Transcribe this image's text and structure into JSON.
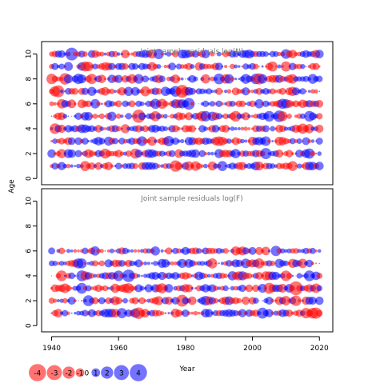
{
  "chart_data": [
    {
      "type": "scatter",
      "title": "Joint sample residuals log(N)",
      "xlabel": "Year",
      "ylabel": "Age",
      "xlim": [
        1937,
        2024
      ],
      "ylim": [
        -0.5,
        11
      ],
      "xticks": [
        "1940",
        "1960",
        "1980",
        "2000",
        "2020"
      ],
      "yticks": [
        "0",
        "2",
        "4",
        "6",
        "8",
        "10"
      ],
      "years": [
        1940,
        2020
      ],
      "ages": [
        1,
        10
      ],
      "bubble_encoding": "size = |residual|, red = negative, blue = positive"
    },
    {
      "type": "scatter",
      "title": "Joint sample residuals log(F)",
      "xlabel": "Year",
      "ylabel": "Age",
      "xlim": [
        1937,
        2024
      ],
      "ylim": [
        -0.5,
        11
      ],
      "xticks": [
        "1940",
        "1960",
        "1980",
        "2000",
        "2020"
      ],
      "yticks": [
        "0",
        "2",
        "4",
        "6",
        "8",
        "10"
      ],
      "years": [
        1940,
        2020
      ],
      "ages": [
        1,
        6
      ],
      "bubble_encoding": "size = |residual|, red = negative, blue = positive"
    }
  ],
  "legend": {
    "items": [
      "-4",
      "-3",
      "-2",
      "-1",
      "0",
      "1",
      "2",
      "3",
      "4"
    ],
    "values": [
      -4,
      -3,
      -2,
      -1,
      0,
      1,
      2,
      3,
      4
    ]
  },
  "colors": {
    "negative": "#ff0000",
    "positive": "#0000ff",
    "title_text": "#777777",
    "axis": "#000000"
  }
}
